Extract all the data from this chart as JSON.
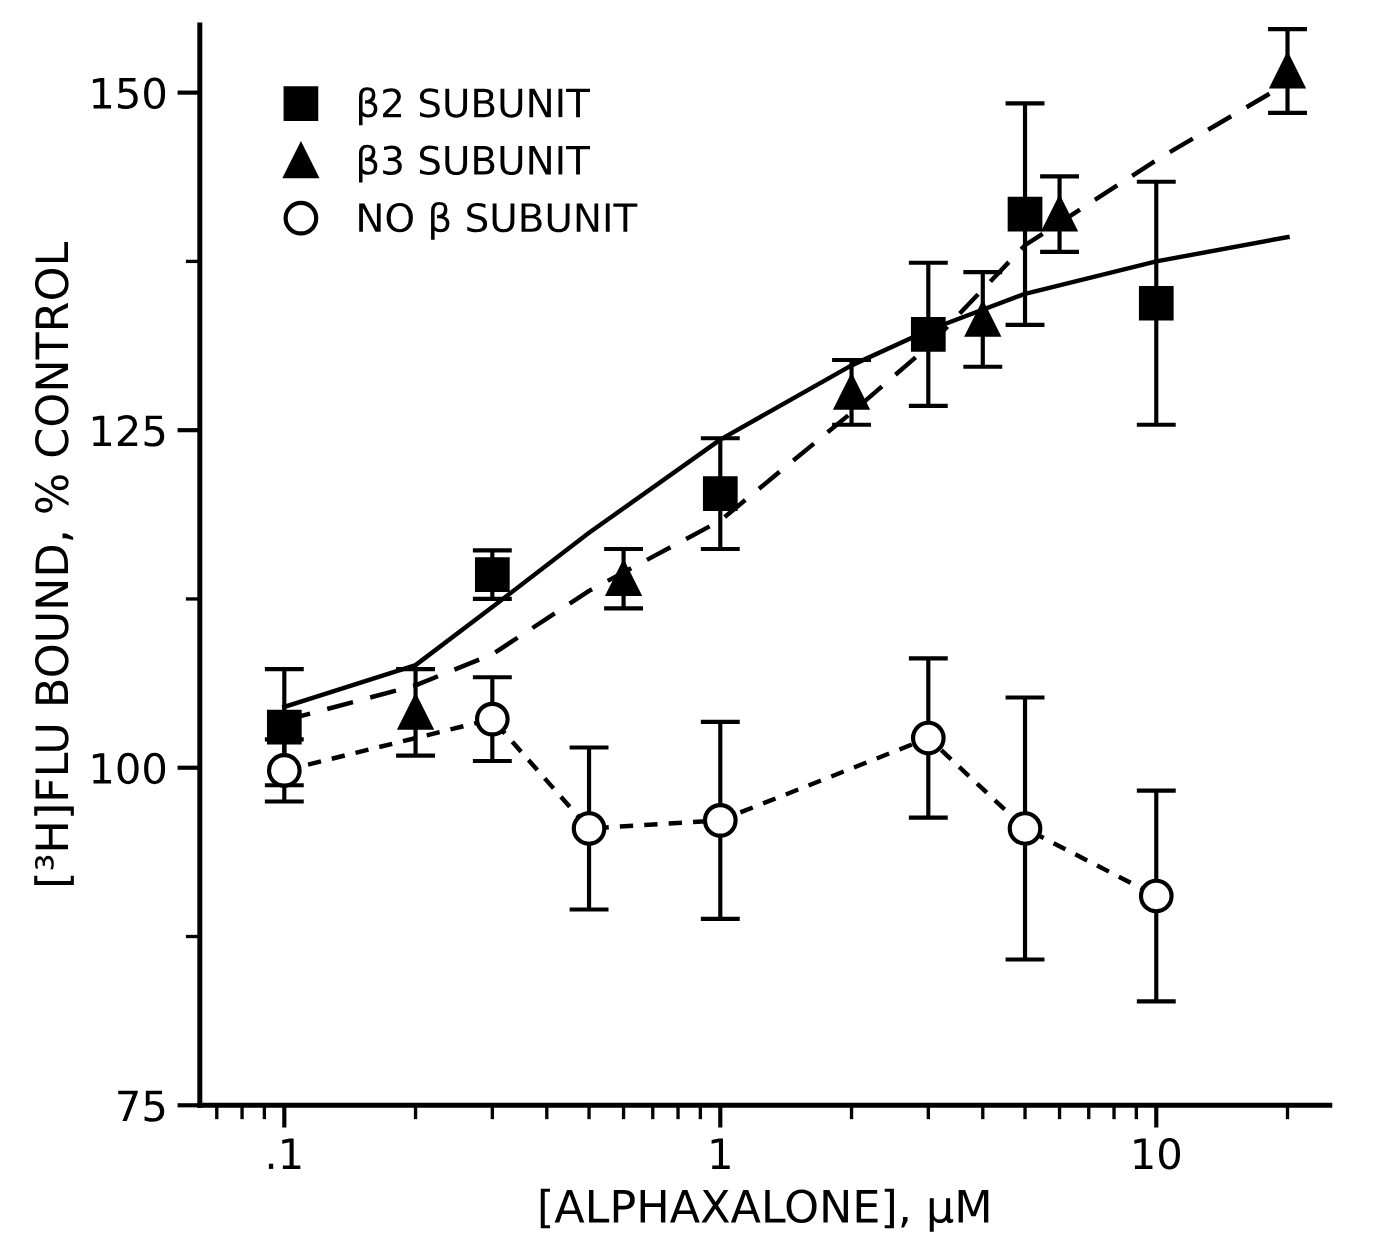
{
  "chart_data": {
    "type": "scatter",
    "xlabel": "[ALPHAXALONE], μM",
    "ylabel": "[³H]FLU BOUND, % CONTROL",
    "log": "x",
    "xlim": [
      0.064,
      25
    ],
    "ylim": [
      75,
      155
    ],
    "xticks": [
      {
        "value": 0.1,
        "label": ".1"
      },
      1,
      10
    ],
    "yticks": [
      75,
      100,
      125,
      150
    ],
    "grid": false,
    "legend": "top left",
    "series": [
      {
        "name": "β2 SUBUNIT",
        "marker": "square",
        "color": "#000000",
        "x": [
          0.1,
          0.3,
          1,
          3,
          5,
          10
        ],
        "values": [
          103,
          114.3,
          120.3,
          132.1,
          141.0,
          134.4
        ],
        "errors": [
          4.3,
          1.8,
          4.1,
          5.3,
          8.2,
          9.0
        ]
      },
      {
        "name": "β3 SUBUNIT",
        "marker": "triangle",
        "color": "#000000",
        "x": [
          0.2,
          0.6,
          2,
          4,
          6,
          20
        ],
        "values": [
          104.1,
          114,
          127.8,
          133.2,
          141,
          151.6
        ],
        "errors": [
          3.2,
          2.2,
          2.4,
          3.5,
          2.8,
          3.1
        ]
      },
      {
        "name": "NO β SUBUNIT",
        "type": "line",
        "marker": "circle",
        "line_style": "dotted",
        "color": "#000000",
        "x": [
          0.1,
          0.3,
          0.5,
          1,
          3,
          5,
          10
        ],
        "values": [
          99.8,
          103.6,
          95.5,
          96.1,
          102.2,
          95.5,
          90.5
        ],
        "errors": [
          2.3,
          3.1,
          6.0,
          7.3,
          5.9,
          9.7,
          7.8
        ]
      },
      {
        "type": "line",
        "marker": "none",
        "line_style": "solid",
        "color": "#000000",
        "x": [
          0.1,
          0.2,
          0.3,
          0.5,
          1,
          2,
          3,
          5,
          10,
          20
        ],
        "values": [
          104.5,
          107.6,
          111.9,
          117.4,
          124.3,
          129.8,
          132.4,
          135.1,
          137.5,
          139.3
        ]
      },
      {
        "type": "line",
        "marker": "none",
        "line_style": "dashed",
        "color": "#000000",
        "x": [
          0.1,
          0.2,
          0.3,
          0.5,
          1,
          2,
          3,
          5,
          10,
          20
        ],
        "values": [
          103.5,
          106.1,
          108.4,
          113.1,
          118.3,
          126.3,
          131.2,
          138.7,
          145,
          150.7
        ]
      }
    ]
  }
}
